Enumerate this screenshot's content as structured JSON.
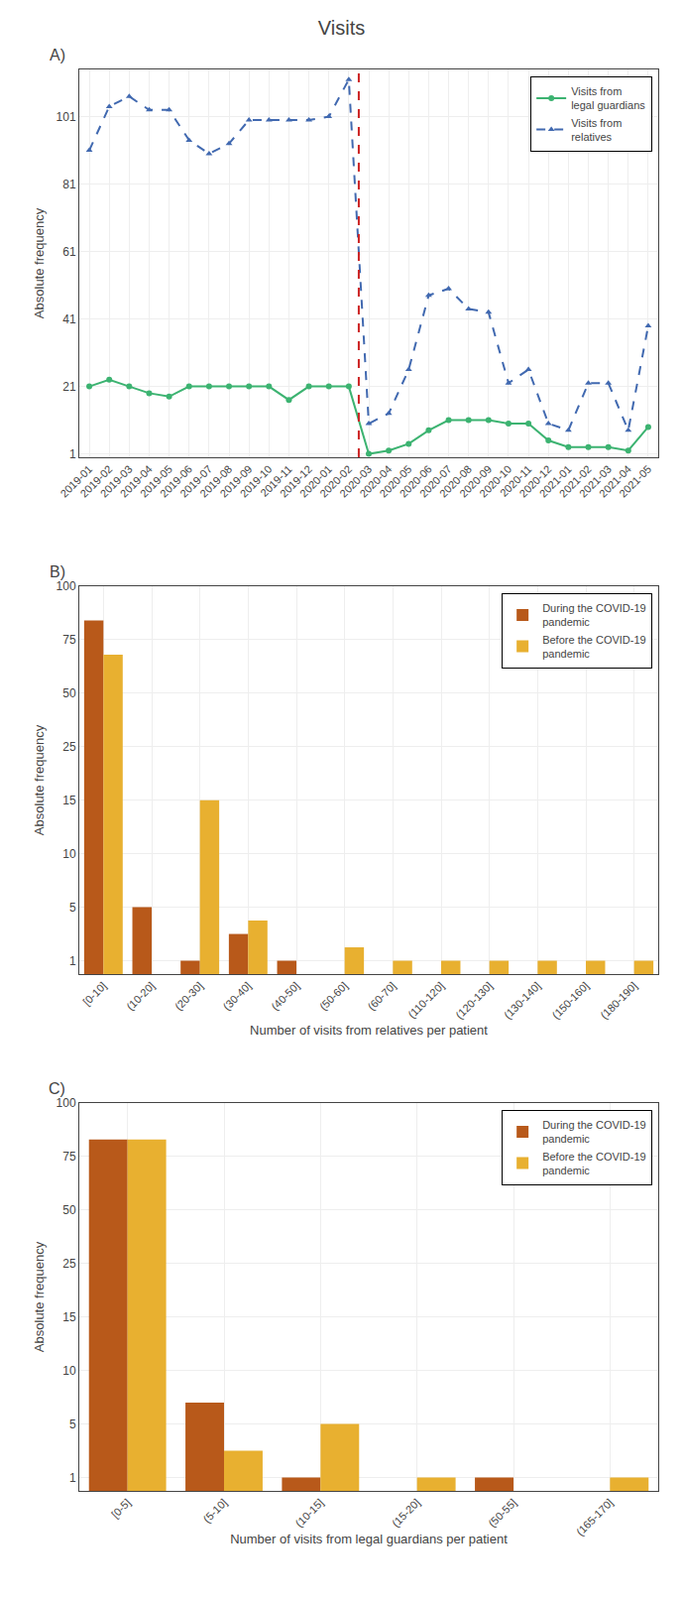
{
  "title": "Visits",
  "chart_data": [
    {
      "type": "line",
      "title": "A)",
      "ylabel": "Absolute frequency",
      "categories": [
        "2019-01",
        "2019-02",
        "2019-03",
        "2019-04",
        "2019-05",
        "2019-06",
        "2019-07",
        "2019-08",
        "2019-09",
        "2019-10",
        "2019-11",
        "2019-12",
        "2020-01",
        "2020-02",
        "2020-03",
        "2020-04",
        "2020-05",
        "2020-06",
        "2020-07",
        "2020-08",
        "2020-09",
        "2020-10",
        "2020-11",
        "2020-12",
        "2021-01",
        "2021-02",
        "2021-03",
        "2021-04",
        "2021-05"
      ],
      "series": [
        {
          "name": "Visits from\nlegal guardians",
          "color": "#3CB371",
          "marker": "circle",
          "line_style": "solid",
          "values": [
            21,
            23,
            21,
            19,
            18,
            21,
            21,
            21,
            21,
            21,
            17,
            21,
            21,
            21,
            1,
            2,
            4,
            8,
            11,
            11,
            11,
            10,
            10,
            5,
            3,
            3,
            3,
            2,
            9
          ]
        },
        {
          "name": "Visits from\nrelatives",
          "color": "#4169B0",
          "marker": "triangle-up",
          "line_style": "dashed",
          "values": [
            91,
            104,
            107,
            103,
            103,
            94,
            90,
            93,
            100,
            100,
            100,
            100,
            101,
            112,
            10,
            13,
            26,
            48,
            50,
            44,
            43,
            22,
            26,
            10,
            8,
            22,
            22,
            8,
            39
          ]
        }
      ],
      "vertical_line": {
        "between": [
          "2020-02",
          "2020-03"
        ],
        "color": "#CC2222",
        "line_style": "dashed"
      },
      "ylim": [
        0,
        115
      ],
      "yticks": [
        1,
        21,
        41,
        61,
        81,
        101
      ],
      "grid": true,
      "legend": "upper right"
    },
    {
      "type": "bar",
      "title": "B)",
      "ylabel": "Absolute frequency",
      "xlabel": "Number of visits from relatives per patient",
      "categories": [
        "[0-10]",
        "(10-20]",
        "(20-30]",
        "(30-40]",
        "(40-50]",
        "(50-60]",
        "(60-70]",
        "(110-120]",
        "(120-130]",
        "(130-140]",
        "(150-160]",
        "(180-190]"
      ],
      "series": [
        {
          "name": "During the COVID-19\npandemic",
          "color": "#B8591A",
          "values": [
            84,
            5,
            1,
            3,
            1,
            0,
            0,
            0,
            0,
            0,
            0,
            0
          ]
        },
        {
          "name": "Before the COVID-19\npandemic",
          "color": "#E8B030",
          "values": [
            68,
            0,
            15,
            4,
            0,
            2,
            1,
            1,
            1,
            1,
            1,
            1
          ]
        }
      ],
      "ylim": [
        0,
        100
      ],
      "yticks": [
        1,
        5,
        10,
        15,
        25,
        50,
        75,
        100
      ],
      "grid": true,
      "legend": "upper right"
    },
    {
      "type": "bar",
      "title": "C)",
      "ylabel": "Absolute frequency",
      "xlabel": "Number of visits from legal guardians per patient",
      "categories": [
        "[0-5]",
        "(5-10]",
        "(10-15]",
        "(15-20]",
        "(50-55]",
        "(165-170]"
      ],
      "series": [
        {
          "name": "During the COVID-19\npandemic",
          "color": "#B8591A",
          "values": [
            83,
            7,
            1,
            0,
            1,
            0
          ]
        },
        {
          "name": "Before the COVID-19\npandemic",
          "color": "#E8B030",
          "values": [
            83,
            3,
            5,
            1,
            0,
            1
          ]
        }
      ],
      "ylim": [
        0,
        100
      ],
      "yticks": [
        1,
        5,
        10,
        15,
        25,
        50,
        75,
        100
      ],
      "grid": true,
      "legend": "upper right"
    }
  ]
}
